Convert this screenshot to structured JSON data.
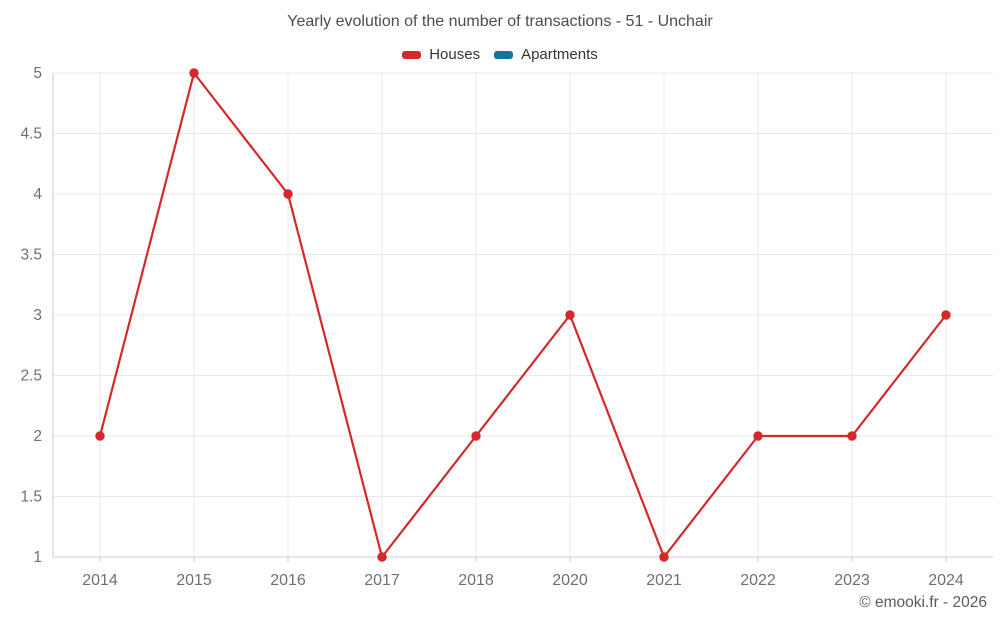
{
  "header": {
    "title": "Yearly evolution of the number of transactions - 51 - Unchair"
  },
  "legend": {
    "items": [
      {
        "label": "Houses",
        "color": "#d5282a"
      },
      {
        "label": "Apartments",
        "color": "#1572a1"
      }
    ]
  },
  "footer": {
    "credit": "© emooki.fr - 2026"
  },
  "chart_data": {
    "type": "line",
    "title": "Yearly evolution of the number of transactions - 51 - Unchair",
    "categories": [
      "2014",
      "2015",
      "2016",
      "2017",
      "2018",
      "2020",
      "2021",
      "2022",
      "2023",
      "2024"
    ],
    "series": [
      {
        "name": "Houses",
        "color": "#d5282a",
        "values": [
          2,
          5,
          4,
          1,
          2,
          3,
          1,
          2,
          2,
          3
        ]
      },
      {
        "name": "Apartments",
        "color": "#1572a1",
        "values": []
      }
    ],
    "xlabel": "",
    "ylabel": "",
    "ylim": [
      1,
      5
    ],
    "yticks": [
      1,
      1.5,
      2,
      2.5,
      3,
      3.5,
      4,
      4.5,
      5
    ],
    "grid": true,
    "legend_position": "top",
    "style": {
      "grid_color": "#e8e8e8",
      "axis_line_color": "#cdcdcd",
      "axis_label_color": "#707070",
      "title_color": "#4c4c52",
      "legend_text_color": "#333338",
      "credit_color": "#5b5b63",
      "background": "#ffffff"
    }
  }
}
